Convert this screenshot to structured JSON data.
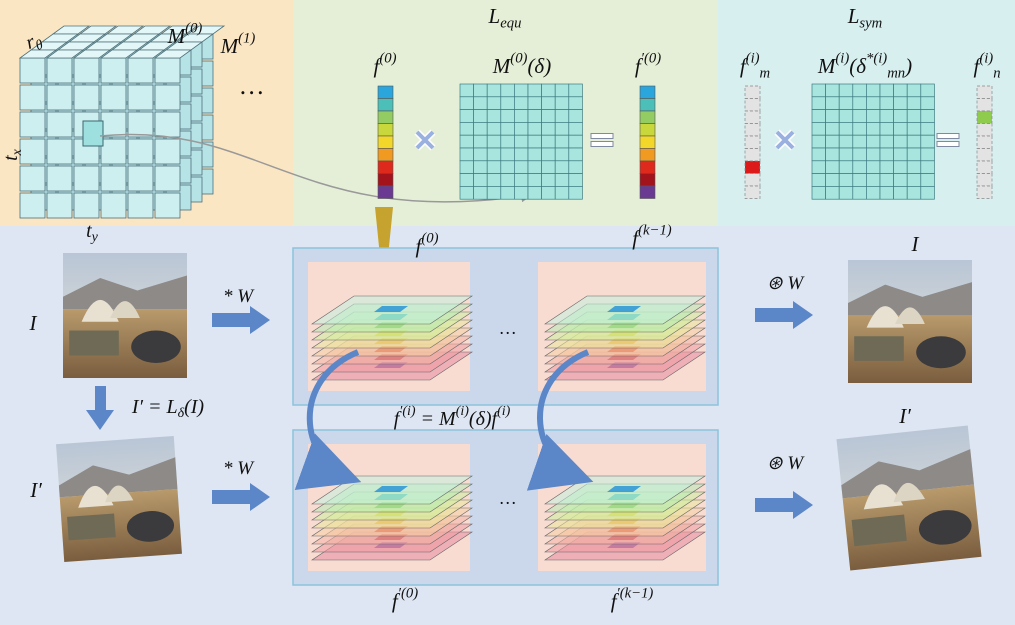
{
  "cube": {
    "r_theta": [
      "r",
      {
        "sub": "θ"
      }
    ],
    "m0": [
      "M",
      {
        "sup": "(0)"
      }
    ],
    "m1": [
      "M",
      {
        "sup": "(1)"
      }
    ],
    "ellipsis": [
      "…"
    ],
    "tx": [
      "t",
      {
        "sub": "x"
      }
    ],
    "ty": [
      "t",
      {
        "sub": "y"
      }
    ]
  },
  "equ": {
    "title": [
      "L",
      {
        "sub": "equ"
      }
    ],
    "f": [
      "f",
      {
        "sup": "(0)"
      }
    ],
    "m": [
      "M",
      {
        "sup": "(0)"
      },
      "(δ)"
    ],
    "fp": [
      "f",
      {
        "sup": "′(0)"
      }
    ]
  },
  "sym": {
    "title": [
      "L",
      {
        "sub": "sym"
      }
    ],
    "fm": [
      "f",
      {
        "sup": "(i)"
      },
      {
        "sub": "m"
      }
    ],
    "m": [
      "M",
      {
        "sup": "(i)"
      },
      "(δ",
      {
        "sup": "*(i)"
      },
      {
        "sub": "mn"
      },
      ")"
    ],
    "fn": [
      "f",
      {
        "sup": "(i)"
      },
      {
        "sub": "n"
      }
    ]
  },
  "flow": {
    "input": [
      "I"
    ],
    "input_t": [
      "I′"
    ],
    "conv_top": [
      "* W"
    ],
    "conv_bottom": [
      "* W"
    ],
    "transform": [
      "I′ = L",
      {
        "sub": "δ"
      },
      "(I)"
    ],
    "f0": [
      "f",
      {
        "sup": "(0)"
      }
    ],
    "fk": [
      "f",
      {
        "sup": "(k−1)"
      }
    ],
    "dots_top": [
      "…"
    ],
    "dots_bottom": [
      "…"
    ],
    "relation": [
      "f",
      {
        "sup": "′(i)"
      },
      " = M",
      {
        "sup": "(i)"
      },
      "(δ)f",
      {
        "sup": "(i)"
      }
    ],
    "fp0": [
      "f",
      {
        "sup": "′(0)"
      }
    ],
    "fpk": [
      "f",
      {
        "sup": "′(k−1)"
      }
    ],
    "deconv_top": [
      "⊛ W"
    ],
    "deconv_bottom": [
      "⊛ W"
    ],
    "output": [
      "I"
    ],
    "output_t": [
      "I′"
    ]
  }
}
